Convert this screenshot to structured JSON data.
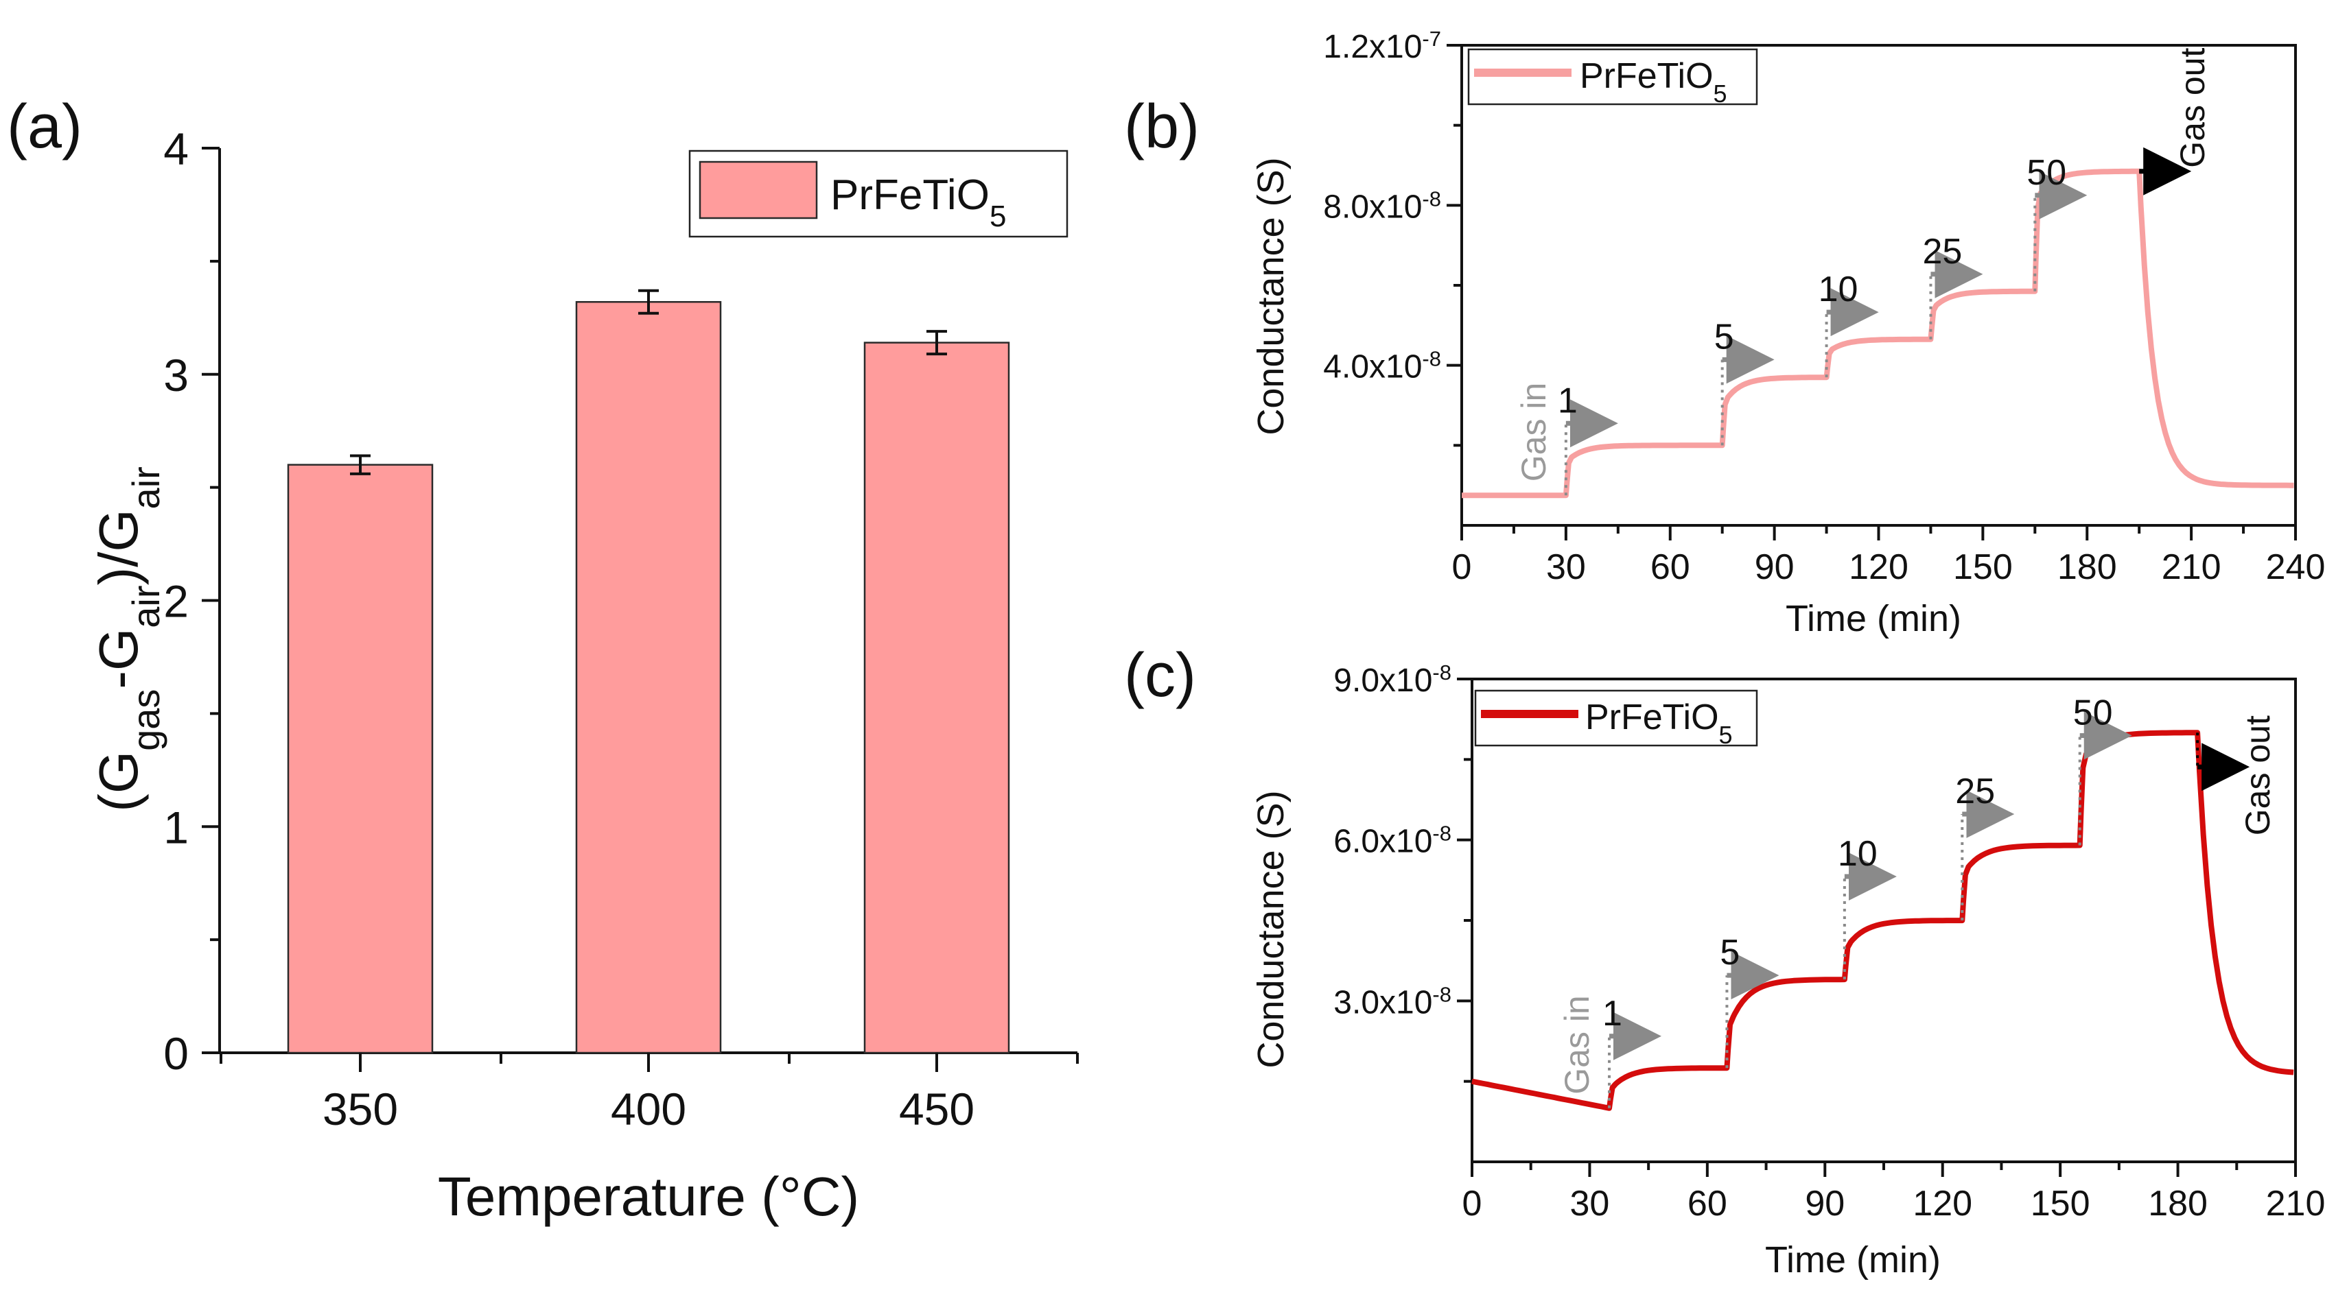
{
  "figure": {
    "panels": [
      {
        "label": "(a)"
      },
      {
        "label": "(b)"
      },
      {
        "label": "(c)"
      }
    ]
  },
  "colors": {
    "bar_fill": "#ff9c9c",
    "line_b": "#f7a0a0",
    "line_c": "#d40c0c",
    "marker_arrow": "#8a8a8a",
    "gas_out_arrow": "#000000"
  },
  "chart_data": [
    {
      "panel": "(a)",
      "type": "bar",
      "categories": [
        "350",
        "400",
        "450"
      ],
      "values": [
        2.6,
        3.32,
        3.14
      ],
      "errors": [
        0.04,
        0.05,
        0.05
      ],
      "xlabel": "Temperature (°C)",
      "ylabel_parts": {
        "open": "(G",
        "sub1": "gas",
        "mid": "-G",
        "sub2": "air",
        "close": ")/G",
        "sub3": "air"
      },
      "ylim": [
        0,
        4
      ],
      "yticks": [
        "0",
        "1",
        "2",
        "3",
        "4"
      ],
      "legend": {
        "base": "PrFeTiO",
        "sub": "5",
        "position": "top-right"
      }
    },
    {
      "panel": "(b)",
      "type": "line",
      "xlabel": "Time (min)",
      "ylabel": "Conductance (S)",
      "xlim": [
        0,
        240
      ],
      "ylim": [
        0,
        1.2e-07
      ],
      "xticks": [
        "0",
        "30",
        "60",
        "90",
        "120",
        "150",
        "180",
        "210",
        "240"
      ],
      "ytick_values": [
        4e-08,
        8e-08,
        1.2e-07
      ],
      "ytick_labels": [
        {
          "mant": "4.0x10",
          "exp": "-8"
        },
        {
          "mant": "8.0x10",
          "exp": "-8"
        },
        {
          "mant": "1.2x10",
          "exp": "-7"
        }
      ],
      "legend": {
        "base": "PrFeTiO",
        "sub": "5",
        "position": "top-left"
      },
      "gas_in_label": "Gas in",
      "gas_out_label": "Gas out",
      "gas_out_time": 195,
      "steps": [
        {
          "t": 30,
          "label": "1",
          "base": 7.5e-09,
          "jump": 1.7e-08,
          "final": 2e-08
        },
        {
          "t": 75,
          "label": "5",
          "base": 2e-08,
          "jump": 3.2e-08,
          "final": 3.7e-08
        },
        {
          "t": 105,
          "label": "10",
          "base": 3.7e-08,
          "jump": 4.4e-08,
          "final": 4.65e-08
        },
        {
          "t": 135,
          "label": "25",
          "base": 4.65e-08,
          "jump": 5.5e-08,
          "final": 5.85e-08
        },
        {
          "t": 165,
          "label": "50",
          "base": 5.85e-08,
          "jump": 8.3e-08,
          "final": 8.85e-08
        }
      ],
      "recovery_end": 1e-08
    },
    {
      "panel": "(c)",
      "type": "line",
      "xlabel": "Time (min)",
      "ylabel": "Conductance (S)",
      "xlim": [
        0,
        210
      ],
      "ylim": [
        0,
        9e-08
      ],
      "xticks": [
        "0",
        "30",
        "60",
        "90",
        "120",
        "150",
        "180",
        "210"
      ],
      "ytick_values": [
        3e-08,
        6e-08,
        9e-08
      ],
      "ytick_labels": [
        {
          "mant": "3.0x10",
          "exp": "-8"
        },
        {
          "mant": "6.0x10",
          "exp": "-8"
        },
        {
          "mant": "9.0x10",
          "exp": "-8"
        }
      ],
      "legend": {
        "base": "PrFeTiO",
        "sub": "5",
        "position": "top-left"
      },
      "gas_in_label": "Gas in",
      "gas_out_label": "Gas out",
      "gas_out_time": 185,
      "initial": 1.5e-08,
      "steps": [
        {
          "t": 35,
          "label": "1",
          "base": 1e-08,
          "jump": 1.45e-08,
          "final": 1.75e-08
        },
        {
          "t": 65,
          "label": "5",
          "base": 1.75e-08,
          "jump": 2.7e-08,
          "final": 3.4e-08
        },
        {
          "t": 95,
          "label": "10",
          "base": 3.4e-08,
          "jump": 4.1e-08,
          "final": 4.5e-08
        },
        {
          "t": 125,
          "label": "25",
          "base": 4.5e-08,
          "jump": 5.5e-08,
          "final": 5.9e-08
        },
        {
          "t": 155,
          "label": "50",
          "base": 5.9e-08,
          "jump": 7.6e-08,
          "final": 8e-08
        }
      ],
      "recovery_end": 1.65e-08
    }
  ]
}
